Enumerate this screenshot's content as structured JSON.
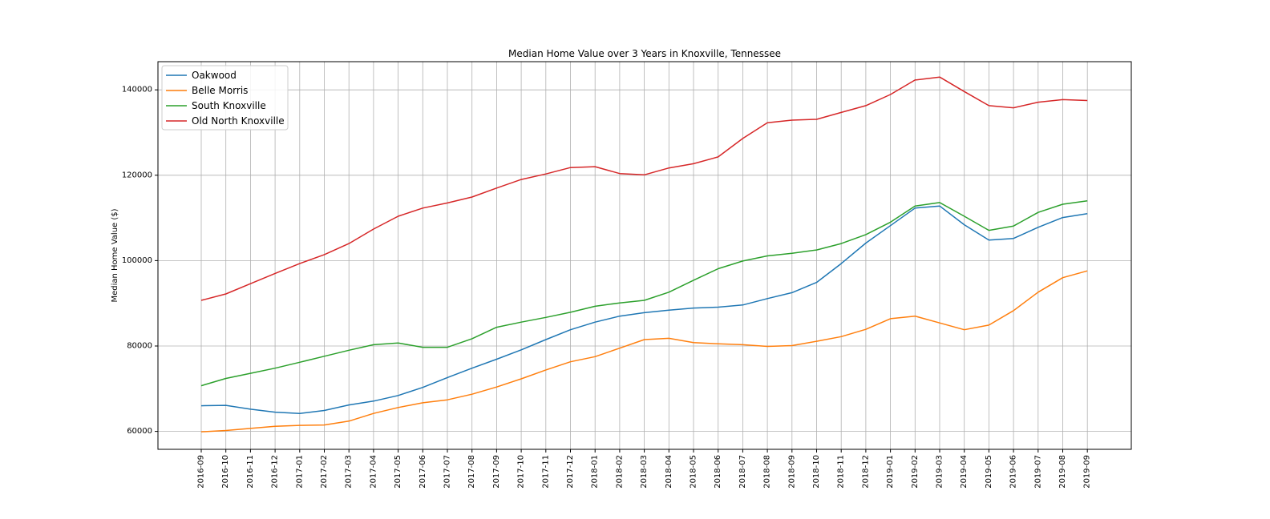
{
  "chart_data": {
    "type": "line",
    "title": "Median Home Value over 3 Years in Knoxville, Tennessee",
    "xlabel": "",
    "ylabel": "Median Home Value ($)",
    "ylim": [
      55800,
      146600
    ],
    "yticks": [
      60000,
      80000,
      100000,
      120000,
      140000
    ],
    "grid": true,
    "legend_position": "top-left",
    "categories": [
      "2016-09",
      "2016-10",
      "2016-11",
      "2016-12",
      "2017-01",
      "2017-02",
      "2017-03",
      "2017-04",
      "2017-05",
      "2017-06",
      "2017-07",
      "2017-08",
      "2017-09",
      "2017-10",
      "2017-11",
      "2017-12",
      "2018-01",
      "2018-02",
      "2018-03",
      "2018-04",
      "2018-05",
      "2018-06",
      "2018-07",
      "2018-08",
      "2018-09",
      "2018-10",
      "2018-11",
      "2018-12",
      "2019-01",
      "2019-02",
      "2019-03",
      "2019-04",
      "2019-05",
      "2019-06",
      "2019-07",
      "2019-08",
      "2019-09"
    ],
    "series": [
      {
        "name": "Oakwood",
        "color": "#1f77b4",
        "values": [
          66000,
          66100,
          65200,
          64500,
          64200,
          64900,
          66200,
          67100,
          68400,
          70300,
          72600,
          74800,
          76900,
          79100,
          81500,
          83800,
          85600,
          87000,
          87800,
          88400,
          88900,
          89100,
          89600,
          91100,
          92500,
          94900,
          99300,
          104100,
          108200,
          112300,
          112800,
          108400,
          104800,
          105200,
          107800,
          110100,
          111000
        ]
      },
      {
        "name": "Belle Morris",
        "color": "#ff7f0e",
        "values": [
          59900,
          60200,
          60700,
          61200,
          61400,
          61500,
          62400,
          64200,
          65600,
          66700,
          67400,
          68700,
          70400,
          72300,
          74400,
          76300,
          77500,
          79500,
          81500,
          81800,
          80800,
          80500,
          80300,
          79900,
          80100,
          81100,
          82200,
          83900,
          86400,
          87000,
          85400,
          83800,
          84900,
          88300,
          92600,
          96000,
          97600
        ]
      },
      {
        "name": "South Knoxville",
        "color": "#2ca02c",
        "values": [
          70700,
          72400,
          73600,
          74800,
          76200,
          77600,
          79000,
          80300,
          80700,
          79700,
          79700,
          81700,
          84400,
          85600,
          86700,
          87900,
          89300,
          90100,
          90700,
          92600,
          95400,
          98100,
          99900,
          101100,
          101700,
          102500,
          104000,
          106100,
          109000,
          112800,
          113600,
          110400,
          107100,
          108100,
          111300,
          113200,
          114000
        ]
      },
      {
        "name": "Old North Knoxville",
        "color": "#d62728",
        "values": [
          90700,
          92200,
          94600,
          97000,
          99300,
          101400,
          104000,
          107400,
          110400,
          112300,
          113500,
          114900,
          117000,
          119000,
          120300,
          121800,
          122000,
          120400,
          120100,
          121700,
          122700,
          124300,
          128600,
          132300,
          132900,
          133100,
          134700,
          136300,
          138900,
          142300,
          143000,
          139600,
          136300,
          135800,
          137100,
          137700,
          137500
        ]
      }
    ]
  }
}
